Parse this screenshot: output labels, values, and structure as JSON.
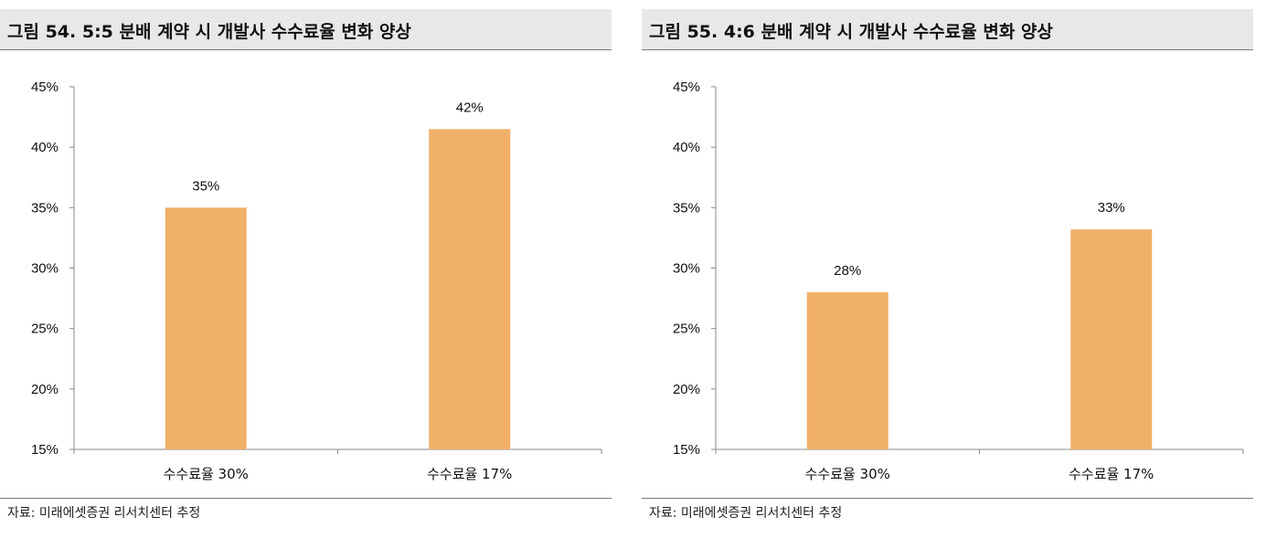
{
  "charts": [
    {
      "title": "그림 54. 5:5 분배 계약 시 개발사 수수료율 변화 양상",
      "source": "자료: 미래에셋증권 리서치센터 추정"
    },
    {
      "title": "그림 55. 4:6 분배 계약 시 개발사 수수료율 변화 양상",
      "source": "자료: 미래에셋증권 리서치센터 추정"
    }
  ],
  "chart_data": [
    {
      "type": "bar",
      "title": "그림 54. 5:5 분배 계약 시 개발사 수수료율 변화 양상",
      "categories": [
        "수수료율 30%",
        "수수료율 17%"
      ],
      "values": [
        35,
        41.5
      ],
      "data_labels": [
        "35%",
        "42%"
      ],
      "ylim": [
        15,
        45
      ],
      "yticks": [
        15,
        20,
        25,
        30,
        35,
        40,
        45
      ],
      "ytick_labels": [
        "15%",
        "20%",
        "25%",
        "30%",
        "35%",
        "40%",
        "45%"
      ],
      "xlabel": "",
      "ylabel": "",
      "grid": false,
      "bar_color": "#f0b068"
    },
    {
      "type": "bar",
      "title": "그림 55. 4:6 분배 계약 시 개발사 수수료율 변화 양상",
      "categories": [
        "수수료율 30%",
        "수수료율 17%"
      ],
      "values": [
        28,
        33.2
      ],
      "data_labels": [
        "28%",
        "33%"
      ],
      "ylim": [
        15,
        45
      ],
      "yticks": [
        15,
        20,
        25,
        30,
        35,
        40,
        45
      ],
      "ytick_labels": [
        "15%",
        "20%",
        "25%",
        "30%",
        "35%",
        "40%",
        "45%"
      ],
      "xlabel": "",
      "ylabel": "",
      "grid": false,
      "bar_color": "#f0b068"
    }
  ]
}
